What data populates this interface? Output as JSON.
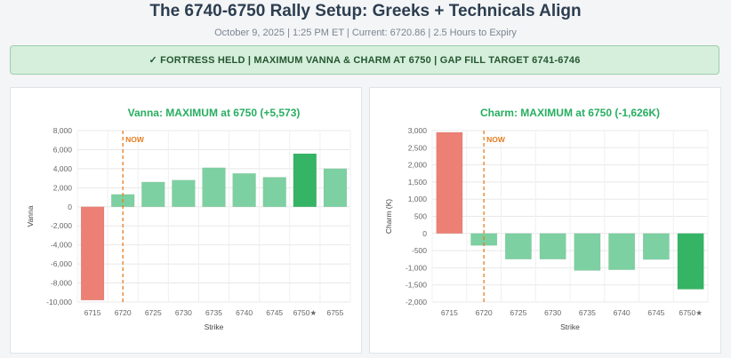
{
  "header": {
    "title": "The 6740-6750 Rally Setup: Greeks + Technicals Align",
    "subtitle": "October 9, 2025 | 1:25 PM ET | Current: 6720.86 | 2.5 Hours to Expiry",
    "banner": "✓ FORTRESS HELD | MAXIMUM VANNA & CHARM AT 6750 | GAP FILL TARGET 6741-6746"
  },
  "colors": {
    "negative": "#ec8074",
    "positive": "#7dd0a1",
    "highlight": "#34b464",
    "now_line": "#e67e22",
    "title_green": "#27ae60"
  },
  "chart_data": [
    {
      "type": "bar",
      "title": "Vanna: MAXIMUM at 6750 (+5,573)",
      "xlabel": "Strike",
      "ylabel": "Vanna",
      "categories": [
        "6715",
        "6720",
        "6725",
        "6730",
        "6735",
        "6740",
        "6745",
        "6750★",
        "6755"
      ],
      "values": [
        -9800,
        1300,
        2600,
        2800,
        4100,
        3500,
        3100,
        5573,
        4000
      ],
      "highlight_category": "6750★",
      "ylim": [
        -10000,
        8000
      ],
      "yticks": [
        8000,
        6000,
        4000,
        2000,
        0,
        -2000,
        -4000,
        -6000,
        -8000,
        -10000
      ],
      "ytick_labels": [
        "8,000",
        "6,000",
        "4,000",
        "2,000",
        "0",
        "-2,000",
        "-4,000",
        "-6,000",
        "-8,000",
        "-10,000"
      ],
      "annotation": {
        "label": "NOW",
        "x": 6720
      },
      "grid": true
    },
    {
      "type": "bar",
      "title": "Charm: MAXIMUM at 6750 (-1,626K)",
      "xlabel": "Strike",
      "ylabel": "Charm (K)",
      "categories": [
        "6715",
        "6720",
        "6725",
        "6730",
        "6735",
        "6740",
        "6745",
        "6750★"
      ],
      "values": [
        2950,
        -350,
        -750,
        -750,
        -1080,
        -1060,
        -760,
        -1626
      ],
      "highlight_category": "6750★",
      "ylim": [
        -2000,
        3000
      ],
      "yticks": [
        3000,
        2500,
        2000,
        1500,
        1000,
        500,
        0,
        -500,
        -1000,
        -1500,
        -2000
      ],
      "ytick_labels": [
        "3,000",
        "2,500",
        "2,000",
        "1,500",
        "1,000",
        "500",
        "0",
        "-500",
        "-1,000",
        "-1,500",
        "-2,000"
      ],
      "annotation": {
        "label": "NOW",
        "x": 6720
      },
      "grid": true
    }
  ]
}
